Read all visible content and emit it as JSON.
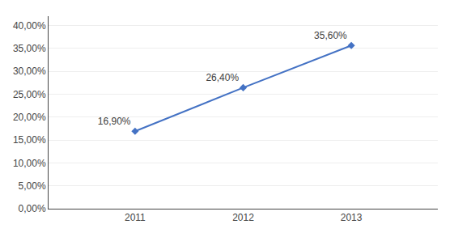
{
  "chart_data": {
    "type": "line",
    "x": [
      2011,
      2012,
      2013
    ],
    "values": [
      0.169,
      0.264,
      0.356
    ],
    "value_labels": [
      "16,90%",
      "26,40%",
      "35,60%"
    ],
    "data_labels": true,
    "color": "#4472C4",
    "marker": "diamond",
    "xlim": [
      2010.2,
      2013.8
    ],
    "xticks": [
      2011,
      2012,
      2013
    ],
    "ylim": [
      0,
      0.42
    ],
    "yticks": [
      {
        "value": 0.0,
        "label": "0,00%"
      },
      {
        "value": 0.05,
        "label": "5,00%"
      },
      {
        "value": 0.1,
        "label": "10,00%"
      },
      {
        "value": 0.15,
        "label": "15,00%"
      },
      {
        "value": 0.2,
        "label": "20,00%"
      },
      {
        "value": 0.25,
        "label": "25,00%"
      },
      {
        "value": 0.3,
        "label": "30,00%"
      },
      {
        "value": 0.35,
        "label": "35,00%"
      },
      {
        "value": 0.4,
        "label": "40,00%"
      }
    ],
    "grid": "y"
  }
}
